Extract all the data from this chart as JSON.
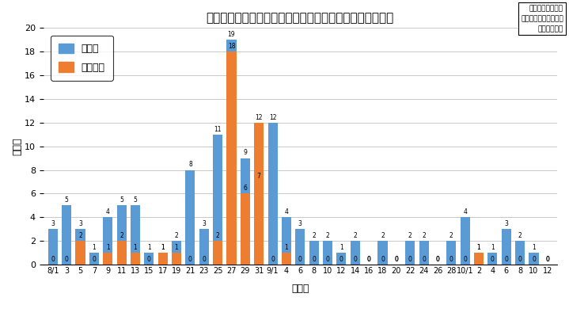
{
  "title": "県内の感染者と松本圈域の感染者の推移（８月１日以降）",
  "ylabel": "（人）",
  "xlabel": "（日）",
  "box_line1": "市長記者会見資料",
  "box_line2": "令和２年１０月１３日",
  "box_line3": "健康づくり課",
  "x_labels": [
    "8/1",
    "3",
    "5",
    "7",
    "9",
    "11",
    "13",
    "15",
    "17",
    "19",
    "21",
    "23",
    "25",
    "27",
    "29",
    "31",
    "9/1",
    "4",
    "6",
    "8",
    "10",
    "12",
    "14",
    "16",
    "18",
    "20",
    "22",
    "24",
    "26",
    "28",
    "10/1",
    "2",
    "4",
    "6",
    "8",
    "10",
    "12"
  ],
  "nagano": [
    3,
    5,
    3,
    1,
    4,
    5,
    5,
    1,
    1,
    2,
    8,
    3,
    11,
    19,
    9,
    7,
    12,
    4,
    3,
    2,
    2,
    1,
    2,
    0,
    2,
    0,
    2,
    2,
    0,
    2,
    4,
    1,
    1,
    3,
    2,
    1,
    0
  ],
  "matsumoto": [
    0,
    0,
    2,
    0,
    1,
    2,
    1,
    0,
    1,
    1,
    0,
    0,
    2,
    18,
    6,
    12,
    0,
    1,
    0,
    0,
    0,
    0,
    0,
    0,
    0,
    0,
    0,
    0,
    0,
    0,
    0,
    1,
    0,
    0,
    0,
    0,
    0
  ],
  "ylim": [
    0,
    20
  ],
  "yticks": [
    0,
    2,
    4,
    6,
    8,
    10,
    12,
    14,
    16,
    18,
    20
  ],
  "bar_color_nagano": "#5B9BD5",
  "bar_color_matsumoto": "#ED7D31",
  "bg_color": "#FFFFFF",
  "legend_nagano": "長野県",
  "legend_matsumoto": "松本圈域"
}
